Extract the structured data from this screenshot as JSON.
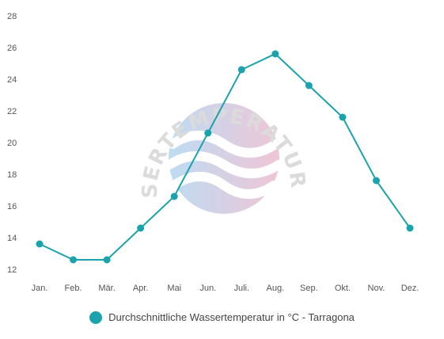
{
  "watermark": {
    "text": "WASSERTEMPERATUR.ORG",
    "colors": [
      "#a8d0ee",
      "#eab3c9"
    ]
  },
  "legend": {
    "label": "Durchschnittliche Wassertemperatur in °C - Tarragona",
    "color": "#1aa3ad"
  },
  "chart_data": {
    "type": "line",
    "categories": [
      "Jan.",
      "Feb.",
      "Mär.",
      "Apr.",
      "Mai",
      "Jun.",
      "Juli.",
      "Aug.",
      "Sep.",
      "Okt.",
      "Nov.",
      "Dez."
    ],
    "series": [
      {
        "name": "Durchschnittliche Wassertemperatur in °C - Tarragona",
        "values": [
          13.6,
          12.6,
          12.6,
          14.6,
          16.6,
          20.6,
          24.6,
          25.6,
          23.6,
          21.6,
          17.6,
          14.6
        ],
        "color": "#1aa3ad"
      }
    ],
    "ylim": [
      12,
      28
    ],
    "yticks": [
      12,
      14,
      16,
      18,
      20,
      22,
      24,
      26,
      28
    ],
    "grid": false,
    "legend_position": "bottom"
  }
}
